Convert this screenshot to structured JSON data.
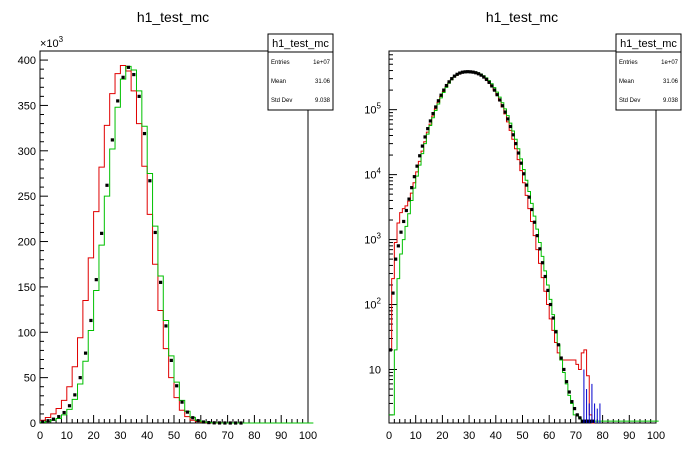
{
  "chart_data": [
    {
      "type": "line",
      "title": "h1_test_mc",
      "xlabel": "",
      "ylabel": "",
      "x_range": [
        0,
        100
      ],
      "ylim": [
        0,
        410000
      ],
      "y_scale": "linear",
      "y_multiplier_label": "×10",
      "y_multiplier_exp": "3",
      "x_ticks": [
        "0",
        "10",
        "20",
        "30",
        "40",
        "50",
        "60",
        "70",
        "80",
        "90",
        "100"
      ],
      "y_ticks": [
        "0",
        "50",
        "100",
        "150",
        "200",
        "250",
        "300",
        "350",
        "400"
      ],
      "grid": false,
      "stats_box": {
        "title": "h1_test_mc",
        "rows": [
          {
            "label": "Entries",
            "value": "1e+07"
          },
          {
            "label": "Mean",
            "value": "31.06"
          },
          {
            "label": "Std Dev",
            "value": "9.038"
          }
        ]
      },
      "series": [
        {
          "color": "#e00000",
          "style": "step",
          "x": [
            0,
            2,
            4,
            6,
            8,
            10,
            12,
            14,
            16,
            18,
            20,
            22,
            24,
            26,
            28,
            30,
            32,
            34,
            36,
            38,
            40,
            42,
            44,
            46,
            48,
            50,
            52,
            54,
            56,
            58,
            60,
            62,
            64,
            66,
            68,
            70
          ],
          "values": [
            3000,
            6000,
            10000,
            16000,
            25000,
            40000,
            62000,
            94000,
            135000,
            182000,
            233000,
            282000,
            328000,
            363000,
            385000,
            394000,
            388000,
            366000,
            330000,
            283000,
            230000,
            175000,
            124000,
            82000,
            50000,
            28000,
            14000,
            7000,
            3000,
            1500,
            700,
            300,
            150,
            80,
            40,
            20
          ]
        },
        {
          "color": "#00c000",
          "style": "step",
          "x": [
            0,
            2,
            4,
            6,
            8,
            10,
            12,
            14,
            16,
            18,
            20,
            22,
            24,
            26,
            28,
            30,
            32,
            34,
            36,
            38,
            40,
            42,
            44,
            46,
            48,
            50,
            52,
            54,
            56,
            58,
            60,
            62,
            64,
            66,
            68,
            70,
            72,
            74,
            76,
            78,
            80,
            100
          ],
          "values": [
            500,
            1500,
            3000,
            5000,
            9000,
            15000,
            26000,
            43000,
            68000,
            102000,
            146000,
            196000,
            250000,
            302000,
            348000,
            379000,
            393000,
            389000,
            366000,
            327000,
            275000,
            217000,
            162000,
            113000,
            74000,
            45000,
            25000,
            13000,
            6200,
            2800,
            1200,
            500,
            200,
            80,
            30,
            12,
            4,
            1,
            0,
            0,
            0,
            0
          ]
        },
        {
          "color": "#000000",
          "style": "markers",
          "x": [
            1,
            3,
            5,
            7,
            9,
            11,
            13,
            15,
            17,
            19,
            21,
            23,
            25,
            27,
            29,
            31,
            33,
            35,
            37,
            39,
            41,
            43,
            45,
            47,
            49,
            51,
            53,
            55,
            57,
            59,
            61,
            63,
            65,
            67,
            69,
            71,
            73,
            75,
            77,
            79
          ],
          "values": [
            1200,
            2500,
            4200,
            7000,
            11500,
            19000,
            31000,
            50000,
            77000,
            113000,
            158000,
            209000,
            262000,
            312000,
            355000,
            381000,
            392000,
            384000,
            360000,
            319000,
            267000,
            210000,
            155000,
            107000,
            69000,
            41000,
            23000,
            12000,
            5800,
            2600,
            1100,
            450,
            180,
            70,
            25,
            9,
            3,
            1,
            0,
            0
          ]
        }
      ]
    },
    {
      "type": "line",
      "title": "h1_test_mc",
      "xlabel": "",
      "ylabel": "",
      "x_range": [
        0,
        100
      ],
      "ylim": [
        1.5,
        800000
      ],
      "y_scale": "log",
      "x_ticks": [
        "0",
        "10",
        "20",
        "30",
        "40",
        "50",
        "60",
        "70",
        "80",
        "90",
        "100"
      ],
      "y_ticks": [
        {
          "value": 10,
          "label": "10",
          "exp": ""
        },
        {
          "value": 100,
          "label": "10",
          "exp": "2"
        },
        {
          "value": 1000,
          "label": "10",
          "exp": "3"
        },
        {
          "value": 10000,
          "label": "10",
          "exp": "4"
        },
        {
          "value": 100000,
          "label": "10",
          "exp": "5"
        }
      ],
      "grid": false,
      "stats_box": {
        "title": "h1_test_mc",
        "rows": [
          {
            "label": "Entries",
            "value": "1e+07"
          },
          {
            "label": "Mean",
            "value": "31.06"
          },
          {
            "label": "Std Dev",
            "value": "9.038"
          }
        ]
      },
      "series": [
        {
          "color": "#e00000",
          "style": "step",
          "x": [
            0,
            1,
            2,
            3,
            4,
            5,
            6,
            7,
            8,
            9,
            10,
            11,
            12,
            13,
            14,
            15,
            16,
            17,
            18,
            19,
            20,
            21,
            22,
            23,
            24,
            25,
            26,
            27,
            28,
            29,
            30,
            31,
            32,
            33,
            34,
            35,
            36,
            37,
            38,
            39,
            40,
            41,
            42,
            43,
            44,
            45,
            46,
            47,
            48,
            49,
            50,
            51,
            52,
            53,
            54,
            55,
            56,
            57,
            58,
            59,
            60,
            61,
            62,
            63,
            64,
            65,
            66,
            67,
            68,
            69,
            70,
            71,
            72,
            73,
            74,
            75,
            76
          ],
          "values": [
            20,
            250,
            900,
            1800,
            2600,
            3000,
            3300,
            3900,
            5200,
            7500,
            11000,
            16000,
            23000,
            32000,
            45000,
            60000,
            80000,
            103000,
            130000,
            160000,
            190000,
            225000,
            258000,
            290000,
            318000,
            340000,
            357000,
            370000,
            378000,
            382000,
            383000,
            380000,
            374000,
            362000,
            345000,
            322000,
            295000,
            265000,
            233000,
            200000,
            168000,
            138000,
            110000,
            86000,
            65000,
            48000,
            35000,
            25000,
            17000,
            11500,
            7500,
            4800,
            3000,
            1900,
            1150,
            700,
            430,
            260,
            160,
            100,
            60,
            40,
            26,
            18,
            14,
            14,
            14,
            14,
            14,
            14,
            12,
            10,
            18,
            20,
            8,
            2,
            0
          ]
        },
        {
          "color": "#00c000",
          "style": "step",
          "x": [
            0,
            1,
            2,
            3,
            4,
            5,
            6,
            7,
            8,
            9,
            10,
            11,
            12,
            13,
            14,
            15,
            16,
            17,
            18,
            19,
            20,
            21,
            22,
            23,
            24,
            25,
            26,
            27,
            28,
            29,
            30,
            31,
            32,
            33,
            34,
            35,
            36,
            37,
            38,
            39,
            40,
            41,
            42,
            43,
            44,
            45,
            46,
            47,
            48,
            49,
            50,
            51,
            52,
            53,
            54,
            55,
            56,
            57,
            58,
            59,
            60,
            61,
            62,
            63,
            64,
            65,
            66,
            67,
            68,
            69,
            70,
            71,
            72,
            73,
            74,
            75,
            76,
            77,
            78,
            79,
            80,
            81,
            82,
            83,
            84,
            85,
            86,
            87,
            88,
            89,
            90,
            91,
            92,
            93,
            94,
            95,
            96,
            97,
            98,
            99,
            100
          ],
          "values": [
            2,
            2,
            20,
            250,
            600,
            1000,
            1600,
            2500,
            4000,
            6200,
            9500,
            14000,
            21000,
            30000,
            42000,
            57000,
            75000,
            97000,
            122000,
            152000,
            184000,
            220000,
            255000,
            290000,
            320000,
            345000,
            363000,
            376000,
            383000,
            386000,
            386000,
            384000,
            378000,
            368000,
            353000,
            333000,
            308000,
            280000,
            250000,
            218000,
            186000,
            156000,
            128000,
            103000,
            81000,
            62000,
            47000,
            35000,
            25000,
            17500,
            12000,
            8200,
            5500,
            3600,
            2300,
            1450,
            900,
            550,
            330,
            200,
            120,
            70,
            40,
            24,
            14,
            9,
            6,
            4,
            3,
            2,
            2,
            1.8,
            1.6,
            1.6,
            1.6,
            1.6,
            1.6,
            1.6,
            1.6,
            1.6,
            1.6,
            1.6,
            1.6,
            1.6,
            1.6,
            1.6,
            1.6,
            1.6,
            1.6,
            1.6,
            1.6,
            1.6,
            1.6,
            1.6,
            1.6,
            1.6,
            1.6,
            1.6,
            1.6,
            1.6,
            1.6
          ]
        },
        {
          "color": "#000000",
          "style": "markers",
          "x": [
            0.5,
            1.5,
            2.5,
            3.5,
            4.5,
            5.5,
            6.5,
            7.5,
            8.5,
            9.5,
            10.5,
            11.5,
            12.5,
            13.5,
            14.5,
            15.5,
            16.5,
            17.5,
            18.5,
            19.5,
            20.5,
            21.5,
            22.5,
            23.5,
            24.5,
            25.5,
            26.5,
            27.5,
            28.5,
            29.5,
            30.5,
            31.5,
            32.5,
            33.5,
            34.5,
            35.5,
            36.5,
            37.5,
            38.5,
            39.5,
            40.5,
            41.5,
            42.5,
            43.5,
            44.5,
            45.5,
            46.5,
            47.5,
            48.5,
            49.5,
            50.5,
            51.5,
            52.5,
            53.5,
            54.5,
            55.5,
            56.5,
            57.5,
            58.5,
            59.5,
            60.5,
            61.5,
            62.5,
            63.5,
            64.5,
            65.5,
            66.5,
            67.5,
            68.5,
            69.5,
            70.5,
            71.5,
            72.5,
            73.5,
            74.5,
            75.5,
            76.5
          ],
          "values": [
            20,
            150,
            500,
            800,
            1300,
            1900,
            2800,
            4200,
            6300,
            9300,
            13500,
            19500,
            27500,
            38000,
            51000,
            67000,
            87000,
            110000,
            137000,
            167000,
            200000,
            235000,
            268000,
            300000,
            328000,
            350000,
            366000,
            377000,
            382000,
            384000,
            382000,
            378000,
            370000,
            357000,
            340000,
            318000,
            292000,
            263000,
            232000,
            200000,
            170000,
            141000,
            115000,
            92000,
            72000,
            55000,
            41000,
            30000,
            21500,
            15000,
            10300,
            6900,
            4500,
            2900,
            1850,
            1150,
            720,
            440,
            270,
            165,
            100,
            62,
            38,
            24,
            15,
            10,
            6.5,
            4.5,
            3.2,
            2.5,
            2,
            1.8,
            1.6,
            1.6,
            1.6,
            1.6,
            1.6
          ]
        },
        {
          "color": "#0000cc",
          "style": "spikes",
          "x": [
            73,
            74,
            75,
            76,
            77,
            78,
            79
          ],
          "values": [
            10,
            5,
            3,
            6,
            3,
            2.5,
            3
          ]
        }
      ]
    }
  ]
}
